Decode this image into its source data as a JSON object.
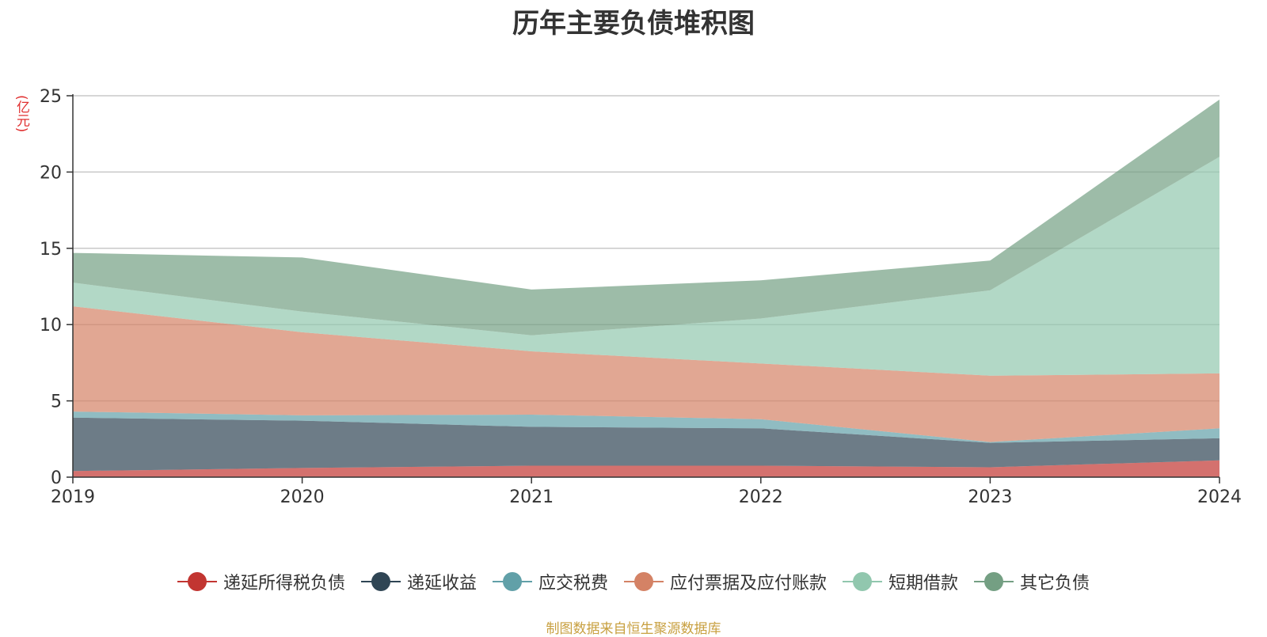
{
  "title": "历年主要负债堆积图",
  "unit_label": "(亿元)",
  "source_note": "制图数据来自恒生聚源数据库",
  "chart_data": {
    "type": "area",
    "stacked": true,
    "title": "历年主要负债堆积图",
    "ylabel": "(亿元)",
    "xlabel": "",
    "x": [
      "2019",
      "2020",
      "2021",
      "2022",
      "2023",
      "2024"
    ],
    "ylim": [
      0,
      25
    ],
    "yticks": [
      0,
      5,
      10,
      15,
      20,
      25
    ],
    "grid": true,
    "legend_position": "bottom",
    "series": [
      {
        "name": "递延所得税负债",
        "color": "#c23531",
        "values": [
          0.4,
          0.6,
          0.75,
          0.75,
          0.65,
          1.1
        ]
      },
      {
        "name": "递延收益",
        "color": "#2f4554",
        "values": [
          3.5,
          3.1,
          2.55,
          2.45,
          1.6,
          1.45
        ]
      },
      {
        "name": "应交税费",
        "color": "#61a0a8",
        "values": [
          0.4,
          0.35,
          0.8,
          0.6,
          0.05,
          0.65
        ]
      },
      {
        "name": "应付票据及应付账款",
        "color": "#d48265",
        "values": [
          6.9,
          5.45,
          4.15,
          3.65,
          4.35,
          3.6
        ]
      },
      {
        "name": "短期借款",
        "color": "#91c7ae",
        "values": [
          1.55,
          1.35,
          1.05,
          2.95,
          5.6,
          14.2
        ]
      },
      {
        "name": "其它负债",
        "color": "#749f83",
        "values": [
          1.95,
          3.55,
          3.0,
          2.5,
          1.95,
          3.75
        ]
      }
    ]
  }
}
